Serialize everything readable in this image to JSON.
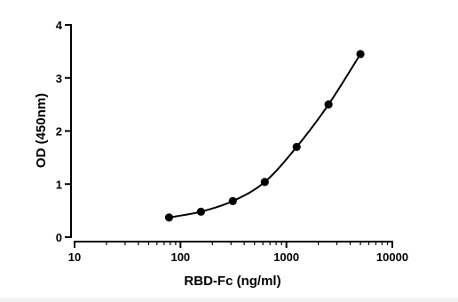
{
  "chart_data": {
    "type": "scatter",
    "x_scale": "log",
    "y_scale": "linear",
    "xlabel": "RBD-Fc (ng/ml)",
    "ylabel": "OD (450nm)",
    "xlim": [
      10,
      10000
    ],
    "ylim": [
      0,
      4
    ],
    "x_ticks": [
      10,
      100,
      1000,
      10000
    ],
    "x_tick_labels": [
      "10",
      "100",
      "1000",
      "10000"
    ],
    "y_ticks": [
      0,
      1,
      2,
      3,
      4
    ],
    "y_tick_labels": [
      "0",
      "1",
      "2",
      "3",
      "4"
    ],
    "grid": false,
    "fit_curve": true,
    "series": [
      {
        "x": [
          78,
          156,
          312,
          625,
          1250,
          2500,
          5000
        ],
        "y": [
          0.37,
          0.48,
          0.68,
          1.04,
          1.7,
          2.5,
          3.45
        ]
      }
    ]
  },
  "colors": {
    "background": "#ffffff",
    "page_border": "#f3f3f3",
    "ink": "#000000"
  }
}
